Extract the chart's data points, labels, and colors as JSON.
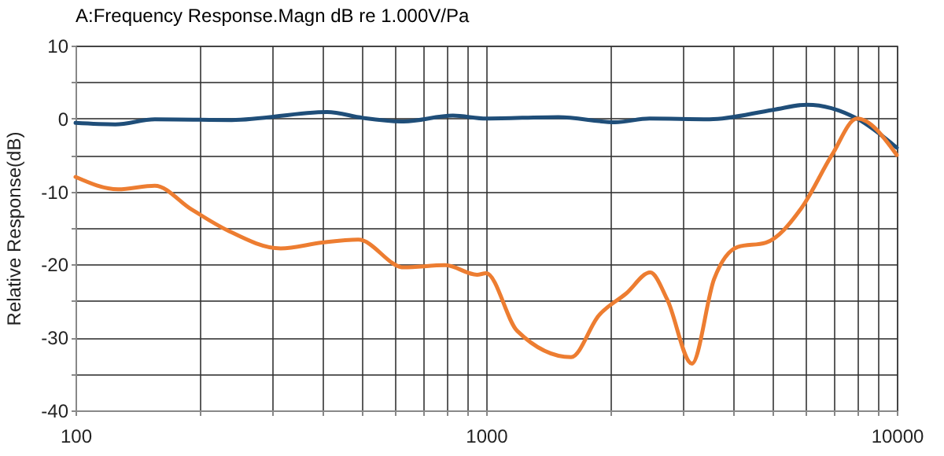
{
  "chart_data": {
    "type": "line",
    "title": "A:Frequency Response.Magn dB re 1.000V/Pa",
    "ylabel": "Relative Response(dB)",
    "log": "x",
    "grid": true,
    "marker": "none",
    "line_style": "solid",
    "xlim": [
      100,
      10000
    ],
    "xticks": [
      100,
      {
        "value": 200,
        "label": null
      },
      {
        "value": 300,
        "label": null
      },
      {
        "value": 400,
        "label": null
      },
      {
        "value": 500,
        "label": null
      },
      {
        "value": 600,
        "label": null
      },
      {
        "value": 700,
        "label": null
      },
      {
        "value": 800,
        "label": null
      },
      {
        "value": 900,
        "label": null
      },
      1000,
      {
        "value": 2000,
        "label": null
      },
      {
        "value": 3000,
        "label": null
      },
      {
        "value": 4000,
        "label": null
      },
      {
        "value": 5000,
        "label": null
      },
      {
        "value": 6000,
        "label": null
      },
      {
        "value": 7000,
        "label": null
      },
      {
        "value": 8000,
        "label": null
      },
      {
        "value": 9000,
        "label": null
      },
      10000
    ],
    "ylim": [
      -40,
      10
    ],
    "yticks": [
      -40,
      {
        "value": -35,
        "label": null
      },
      -30,
      {
        "value": -25,
        "label": null
      },
      -20,
      {
        "value": -15,
        "label": null
      },
      -10,
      {
        "value": -5,
        "label": null
      },
      0,
      {
        "value": 5,
        "label": null
      },
      10
    ],
    "series": [
      {
        "color": "#1f4e79",
        "x": [
          100,
          125,
          156,
          240,
          410,
          500,
          630,
          830,
          1000,
          1500,
          2060,
          2500,
          3500,
          5000,
          6040,
          8000,
          10000
        ],
        "values": [
          -0.6,
          -0.8,
          -0.1,
          -0.2,
          0.9,
          0.1,
          -0.4,
          0.4,
          0,
          0.2,
          -0.5,
          0,
          -0.1,
          1.2,
          1.9,
          0,
          -4
        ]
      },
      {
        "color": "#ed7d31",
        "x": [
          100,
          127,
          156,
          191,
          234,
          316,
          398,
          488,
          630,
          795,
          950,
          1000,
          1190,
          1610,
          1880,
          2190,
          2510,
          2760,
          3170,
          3590,
          4100,
          4800,
          5870,
          6950,
          8000,
          10000
        ],
        "values": [
          -8,
          -9.7,
          -9.2,
          -12.4,
          -15.3,
          -17.8,
          -17,
          -16.6,
          -20.4,
          -20.1,
          -21.4,
          -21.2,
          -29.1,
          -32.7,
          -27,
          -24,
          -21.1,
          -24.8,
          -33.6,
          -22,
          -17.6,
          -17,
          -12.2,
          -5,
          0,
          -5
        ]
      }
    ]
  }
}
